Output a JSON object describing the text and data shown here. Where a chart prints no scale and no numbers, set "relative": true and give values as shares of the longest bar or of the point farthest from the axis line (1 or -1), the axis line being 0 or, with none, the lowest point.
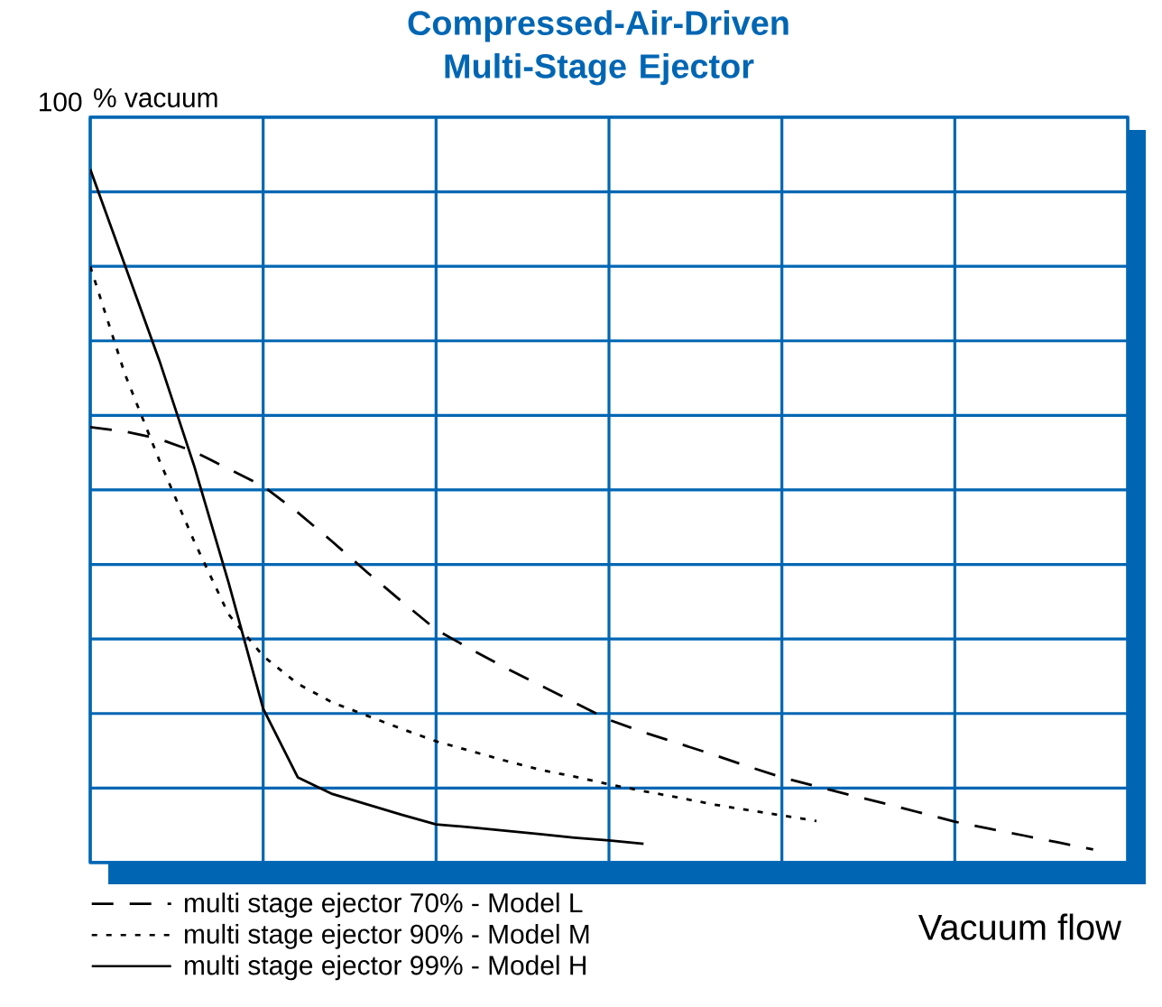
{
  "chart_data": {
    "type": "line",
    "title": "Compressed-Air-Driven Multi-Stage Ejector",
    "xlabel": "Vacuum flow",
    "ylabel": "% vacuum",
    "relative": true,
    "annotations": [
      "100"
    ],
    "categories": [
      null,
      null,
      null,
      null,
      null,
      null,
      null,
      null,
      null,
      null,
      null,
      null,
      null,
      null,
      null,
      null,
      null,
      null,
      null,
      null,
      null,
      null,
      null,
      null,
      null,
      null,
      null,
      null,
      null,
      null,
      null
    ],
    "grid": true,
    "legend": "bottom left",
    "marker": "none",
    "series": [
      {
        "name": "multi stage ejector 70% - Model L",
        "color": "#000000",
        "line_style": "dashed",
        "values": [
          0.628,
          0.622,
          0.611,
          0.593,
          0.568,
          0.543,
          0.505,
          0.463,
          0.419,
          0.377,
          0.336,
          0.308,
          0.281,
          0.256,
          0.231,
          0.206,
          0.188,
          0.172,
          0.156,
          0.139,
          0.123,
          0.11,
          0.097,
          0.085,
          0.072,
          0.059,
          0.049,
          0.039,
          0.029,
          0.019,
          null
        ]
      },
      {
        "name": "multi stage ejector 90% - Model M",
        "color": "#000000",
        "line_style": "dotted",
        "values": [
          0.86,
          0.705,
          0.58,
          0.464,
          0.358,
          0.298,
          0.258,
          0.231,
          0.212,
          0.193,
          0.175,
          0.161,
          0.147,
          0.134,
          0.124,
          0.113,
          0.103,
          0.094,
          0.084,
          0.076,
          0.068,
          0.06,
          null,
          null,
          null,
          null,
          null,
          null,
          null,
          null,
          null
        ]
      },
      {
        "name": "multi stage ejector 99% - Model H",
        "color": "#000000",
        "line_style": "solid",
        "values": [
          1,
          0.862,
          0.724,
          0.573,
          0.404,
          0.222,
          0.123,
          0.099,
          0.084,
          0.069,
          0.055,
          0.051,
          0.046,
          0.041,
          0.036,
          0.032,
          0.027,
          null,
          null,
          null,
          null,
          null,
          null,
          null,
          null,
          null,
          null,
          null,
          null,
          null,
          null
        ]
      }
    ]
  }
}
